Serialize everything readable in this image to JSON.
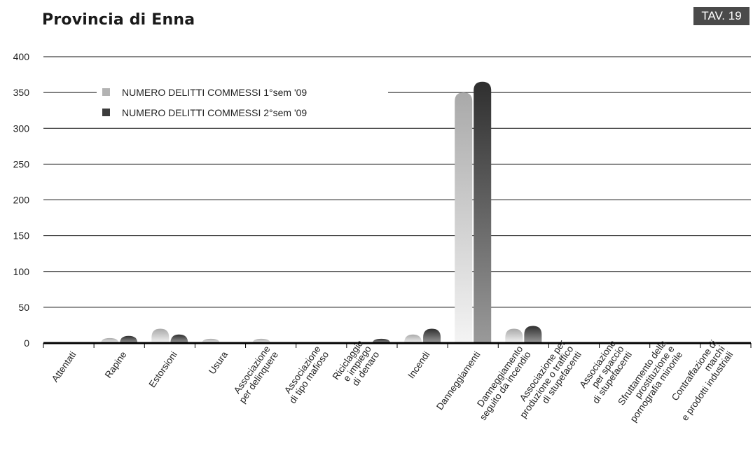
{
  "header": {
    "title": "Provincia di Enna",
    "badge": "TAV. 19"
  },
  "colors": {
    "series1": "#b3b3b3",
    "series2": "#3c3c3c",
    "grid": "#111111"
  },
  "chart_data": {
    "type": "bar",
    "title": "",
    "xlabel": "",
    "ylabel": "",
    "ylim": [
      0,
      400
    ],
    "yticks": [
      0,
      50,
      100,
      150,
      200,
      250,
      300,
      350,
      400
    ],
    "grid": true,
    "legend_position": "top-left",
    "categories": [
      [
        "Attentati"
      ],
      [
        "Rapine"
      ],
      [
        "Estorsioni"
      ],
      [
        "Usura"
      ],
      [
        "Associazione",
        "per delinquere"
      ],
      [
        "Associazione",
        "di tipo mafioso"
      ],
      [
        "Riciclaggio",
        "e impiego",
        "di denaro"
      ],
      [
        "Incendi"
      ],
      [
        "Danneggiamenti"
      ],
      [
        "Danneggiamento",
        "seguito da incendio"
      ],
      [
        "Associazione per",
        "produzione o traffico",
        "di stupefacenti"
      ],
      [
        "Associazione",
        "per spaccio",
        "di stupefacenti"
      ],
      [
        "Sfruttamento della",
        "prostituzione e",
        "pornografia minorile"
      ],
      [
        "Contraffazione di",
        "marchi",
        "e prodotti industriali"
      ]
    ],
    "series": [
      {
        "name": "NUMERO DELITTI COMMESSI 1°sem '09",
        "values": [
          0,
          7,
          20,
          6,
          6,
          0,
          0,
          12,
          350,
          20,
          0,
          0,
          0,
          0
        ]
      },
      {
        "name": "NUMERO DELITTI COMMESSI 2°sem '09",
        "values": [
          0,
          10,
          12,
          0,
          0,
          0,
          6,
          20,
          365,
          24,
          0,
          0,
          0,
          0
        ]
      }
    ]
  }
}
